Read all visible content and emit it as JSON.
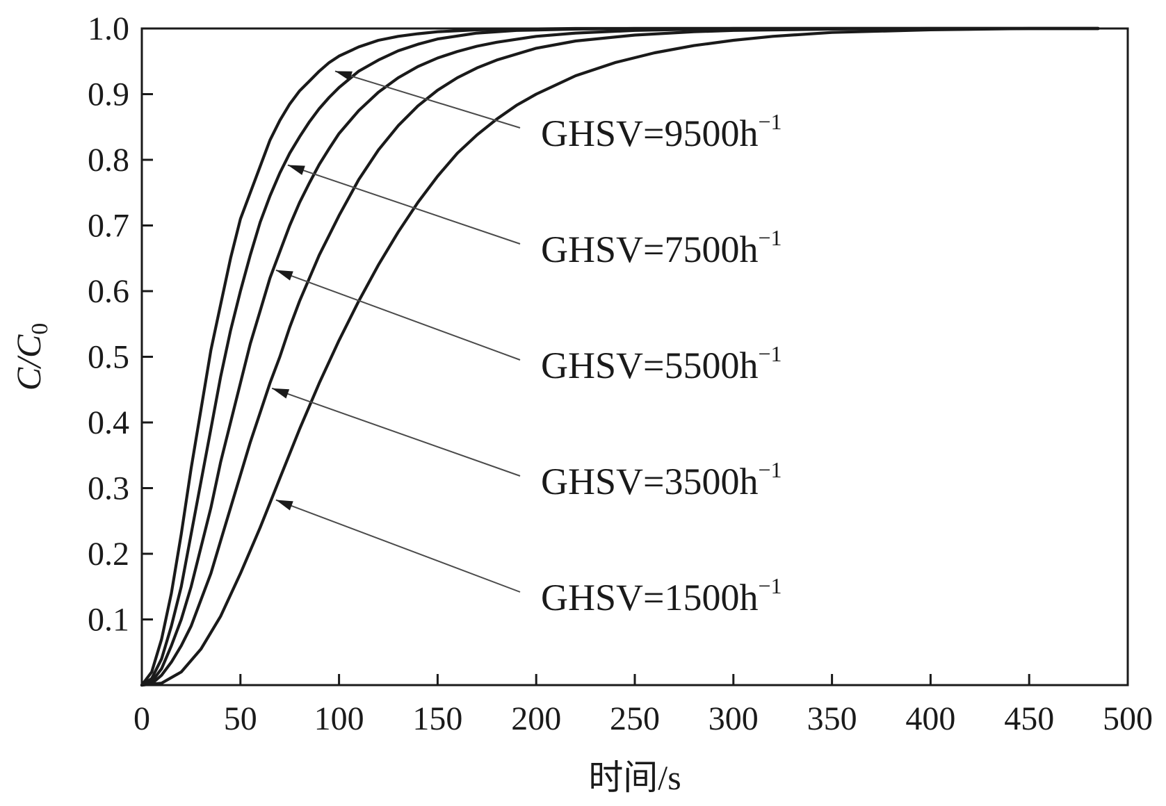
{
  "chart_data": {
    "type": "line",
    "title": "",
    "xlabel": "时间/s",
    "ylabel": {
      "main": "C/C",
      "sub": "0"
    },
    "xlim": [
      0,
      500
    ],
    "ylim": [
      0,
      1.0
    ],
    "x_ticks": [
      0,
      50,
      100,
      150,
      200,
      250,
      300,
      350,
      400,
      450,
      500
    ],
    "x_tick_labels": [
      "0",
      "50",
      "100",
      "150",
      "200",
      "250",
      "300",
      "350",
      "400",
      "450",
      "500"
    ],
    "y_ticks": [
      0.1,
      0.2,
      0.3,
      0.4,
      0.5,
      0.6,
      0.7,
      0.8,
      0.9,
      1.0
    ],
    "y_tick_labels": [
      "0.1",
      "0.2",
      "0.3",
      "0.4",
      "0.5",
      "0.6",
      "0.7",
      "0.8",
      "0.9",
      "1.0"
    ],
    "grid": false,
    "legend": "none",
    "line_color": "#1a1a1a",
    "series": [
      {
        "x": [
          0,
          5,
          10,
          15,
          20,
          25,
          30,
          35,
          40,
          45,
          50,
          55,
          60,
          65,
          70,
          75,
          80,
          85,
          90,
          95,
          100,
          110,
          120,
          130,
          140,
          150,
          170,
          190,
          220,
          250,
          300,
          350,
          400,
          450,
          485
        ],
        "y": [
          0,
          0.02,
          0.07,
          0.14,
          0.23,
          0.33,
          0.42,
          0.51,
          0.58,
          0.65,
          0.71,
          0.75,
          0.79,
          0.83,
          0.86,
          0.885,
          0.905,
          0.92,
          0.935,
          0.948,
          0.958,
          0.972,
          0.982,
          0.988,
          0.992,
          0.995,
          0.998,
          0.999,
          1.0,
          1.0,
          1.0,
          1.0,
          1.0,
          1.0,
          1.0
        ]
      },
      {
        "x": [
          0,
          5,
          10,
          15,
          20,
          25,
          30,
          35,
          40,
          45,
          50,
          55,
          60,
          65,
          70,
          75,
          80,
          85,
          90,
          95,
          100,
          110,
          120,
          130,
          140,
          150,
          170,
          190,
          220,
          250,
          300,
          350,
          400,
          450,
          485
        ],
        "y": [
          0,
          0.01,
          0.04,
          0.09,
          0.15,
          0.23,
          0.31,
          0.39,
          0.47,
          0.54,
          0.6,
          0.655,
          0.705,
          0.745,
          0.78,
          0.81,
          0.835,
          0.858,
          0.878,
          0.895,
          0.91,
          0.935,
          0.952,
          0.966,
          0.976,
          0.984,
          0.993,
          0.997,
          0.999,
          1.0,
          1.0,
          1.0,
          1.0,
          1.0,
          1.0
        ]
      },
      {
        "x": [
          0,
          5,
          10,
          15,
          20,
          25,
          30,
          35,
          40,
          45,
          50,
          55,
          60,
          65,
          70,
          75,
          80,
          85,
          90,
          95,
          100,
          110,
          120,
          130,
          140,
          150,
          160,
          170,
          180,
          200,
          220,
          250,
          300,
          350,
          400,
          450,
          485
        ],
        "y": [
          0,
          0.005,
          0.025,
          0.06,
          0.1,
          0.15,
          0.21,
          0.27,
          0.34,
          0.4,
          0.46,
          0.52,
          0.57,
          0.62,
          0.66,
          0.7,
          0.735,
          0.765,
          0.793,
          0.817,
          0.84,
          0.875,
          0.903,
          0.925,
          0.942,
          0.955,
          0.965,
          0.973,
          0.979,
          0.988,
          0.993,
          0.997,
          1.0,
          1.0,
          1.0,
          1.0,
          1.0
        ]
      },
      {
        "x": [
          0,
          5,
          10,
          15,
          20,
          25,
          30,
          35,
          40,
          45,
          50,
          55,
          60,
          65,
          70,
          75,
          80,
          85,
          90,
          95,
          100,
          110,
          120,
          130,
          140,
          150,
          160,
          170,
          180,
          200,
          220,
          250,
          280,
          300,
          350,
          400,
          450,
          485
        ],
        "y": [
          0,
          0.002,
          0.015,
          0.035,
          0.06,
          0.09,
          0.13,
          0.17,
          0.22,
          0.27,
          0.32,
          0.37,
          0.415,
          0.46,
          0.5,
          0.545,
          0.585,
          0.62,
          0.655,
          0.685,
          0.715,
          0.77,
          0.815,
          0.852,
          0.882,
          0.906,
          0.925,
          0.94,
          0.952,
          0.97,
          0.981,
          0.99,
          0.995,
          0.997,
          0.999,
          1.0,
          1.0,
          1.0
        ]
      },
      {
        "x": [
          0,
          10,
          20,
          30,
          40,
          50,
          60,
          70,
          80,
          90,
          100,
          110,
          120,
          130,
          140,
          150,
          160,
          170,
          180,
          190,
          200,
          220,
          240,
          260,
          280,
          300,
          320,
          350,
          400,
          450,
          485
        ],
        "y": [
          0,
          0.003,
          0.02,
          0.055,
          0.105,
          0.17,
          0.24,
          0.315,
          0.39,
          0.46,
          0.525,
          0.585,
          0.64,
          0.69,
          0.735,
          0.775,
          0.81,
          0.838,
          0.862,
          0.883,
          0.9,
          0.928,
          0.948,
          0.963,
          0.974,
          0.982,
          0.988,
          0.994,
          0.998,
          1.0,
          1.0
        ]
      }
    ],
    "annotations": [
      {
        "text": "GHSV=9500h",
        "sup": "−1",
        "target": [
          98,
          0.935
        ]
      },
      {
        "text": "GHSV=7500h",
        "sup": "−1",
        "target": [
          74,
          0.792
        ]
      },
      {
        "text": "GHSV=5500h",
        "sup": "−1",
        "target": [
          68,
          0.632
        ]
      },
      {
        "text": "GHSV=3500h",
        "sup": "−1",
        "target": [
          66,
          0.452
        ]
      },
      {
        "text": "GHSV=1500h",
        "sup": "−1",
        "target": [
          68,
          0.282
        ]
      }
    ]
  }
}
